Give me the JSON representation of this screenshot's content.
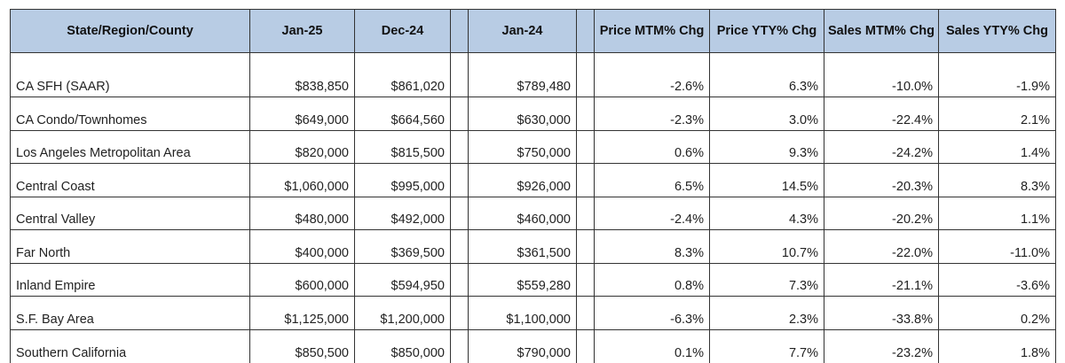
{
  "headers": {
    "region": "State/Region/County",
    "jan25": "Jan-25",
    "dec24": "Dec-24",
    "jan24": "Jan-24",
    "price_mtm": "Price MTM% Chg",
    "price_yty": "Price YTY% Chg",
    "sales_mtm": "Sales MTM% Chg",
    "sales_yty": "Sales YTY% Chg"
  },
  "rows": [
    {
      "name": "CA SFH (SAAR)",
      "jan25": "$838,850",
      "dec24": "$861,020",
      "jan24": "$789,480",
      "price_mtm": "-2.6%",
      "price_yty": "6.3%",
      "sales_mtm": "-10.0%",
      "sales_yty": "-1.9%"
    },
    {
      "name": "CA Condo/Townhomes",
      "jan25": "$649,000",
      "dec24": "$664,560",
      "jan24": "$630,000",
      "price_mtm": "-2.3%",
      "price_yty": "3.0%",
      "sales_mtm": "-22.4%",
      "sales_yty": "2.1%"
    },
    {
      "name": "Los Angeles Metropolitan Area",
      "jan25": "$820,000",
      "dec24": "$815,500",
      "jan24": "$750,000",
      "price_mtm": "0.6%",
      "price_yty": "9.3%",
      "sales_mtm": "-24.2%",
      "sales_yty": "1.4%"
    },
    {
      "name": "Central Coast",
      "jan25": "$1,060,000",
      "dec24": "$995,000",
      "jan24": "$926,000",
      "price_mtm": "6.5%",
      "price_yty": "14.5%",
      "sales_mtm": "-20.3%",
      "sales_yty": "8.3%"
    },
    {
      "name": "Central Valley",
      "jan25": "$480,000",
      "dec24": "$492,000",
      "jan24": "$460,000",
      "price_mtm": "-2.4%",
      "price_yty": "4.3%",
      "sales_mtm": "-20.2%",
      "sales_yty": "1.1%"
    },
    {
      "name": "Far North",
      "jan25": "$400,000",
      "dec24": "$369,500",
      "jan24": "$361,500",
      "price_mtm": "8.3%",
      "price_yty": "10.7%",
      "sales_mtm": "-22.0%",
      "sales_yty": "-11.0%"
    },
    {
      "name": "Inland Empire",
      "jan25": "$600,000",
      "dec24": "$594,950",
      "jan24": "$559,280",
      "price_mtm": "0.8%",
      "price_yty": "7.3%",
      "sales_mtm": "-21.1%",
      "sales_yty": "-3.6%"
    },
    {
      "name": "S.F. Bay Area",
      "jan25": "$1,125,000",
      "dec24": "$1,200,000",
      "jan24": "$1,100,000",
      "price_mtm": "-6.3%",
      "price_yty": "2.3%",
      "sales_mtm": "-33.8%",
      "sales_yty": "0.2%"
    },
    {
      "name": "Southern California",
      "jan25": "$850,500",
      "dec24": "$850,000",
      "jan24": "$790,000",
      "price_mtm": "0.1%",
      "price_yty": "7.7%",
      "sales_mtm": "-23.2%",
      "sales_yty": "1.8%"
    }
  ],
  "colors": {
    "header_bg": "#b8cce4",
    "border": "#333333"
  }
}
